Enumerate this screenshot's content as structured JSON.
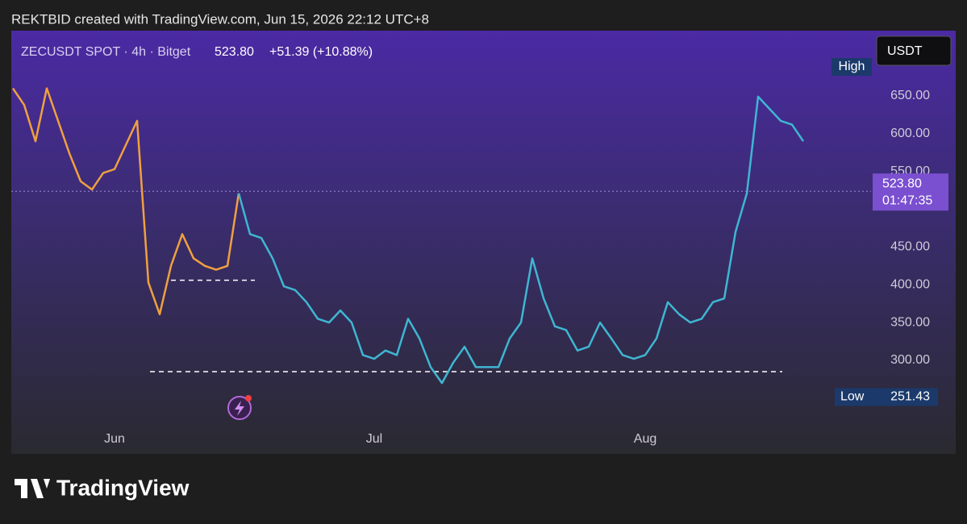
{
  "header": {
    "attribution": "REKTBID created with TradingView.com, Jun 15, 2026 22:12 UTC+8"
  },
  "chart_data": {
    "type": "line",
    "title": "ZECUSDT SPOT · 4h · Bitget",
    "change": "+51.39 (+10.88%)",
    "currency": "USDT",
    "last_price": {
      "value": 523.8,
      "label": "523.80"
    },
    "countdown": "01:47:35",
    "high_label": "High",
    "low": {
      "label": "Low",
      "value": 251.43
    },
    "hlines": [
      406,
      285
    ],
    "categories": [
      null,
      null,
      null,
      null,
      null,
      null,
      null,
      null,
      null,
      "Jun",
      null,
      null,
      null,
      null,
      null,
      null,
      null,
      null,
      null,
      null,
      null,
      null,
      null,
      null,
      null,
      null,
      null,
      null,
      null,
      null,
      null,
      null,
      "Jul",
      null,
      null,
      null,
      null,
      null,
      null,
      null,
      null,
      null,
      null,
      null,
      null,
      null,
      null,
      null,
      null,
      null,
      null,
      null,
      null,
      null,
      null,
      null,
      "Aug",
      null,
      null,
      null,
      null,
      null,
      null,
      null,
      null,
      null,
      null,
      null,
      null,
      null,
      null
    ],
    "series": [
      {
        "color": "#f0a040",
        "values": [
          660,
          638,
          590,
          660,
          617,
          574,
          537,
          526,
          548,
          553,
          585,
          617,
          403,
          361,
          425,
          467,
          435,
          425,
          420,
          425,
          521,
          null,
          null,
          null,
          null,
          null,
          null,
          null,
          null,
          null,
          null,
          null,
          null,
          null,
          null,
          null,
          null,
          null,
          null,
          null,
          null,
          null,
          null,
          null,
          null,
          null,
          null,
          null,
          null,
          null,
          null,
          null,
          null,
          null,
          null,
          null,
          null,
          null,
          null,
          null,
          null,
          null,
          null,
          null,
          null,
          null,
          null,
          null,
          null,
          null,
          null
        ]
      },
      {
        "color": "#3fb6d2",
        "values": [
          null,
          null,
          null,
          null,
          null,
          null,
          null,
          null,
          null,
          null,
          null,
          null,
          null,
          null,
          null,
          null,
          null,
          null,
          null,
          null,
          521,
          467,
          462,
          435,
          398,
          393,
          377,
          355,
          350,
          366,
          350,
          307,
          302,
          313,
          307,
          355,
          329,
          291,
          270,
          297,
          318,
          291,
          291,
          291,
          329,
          350,
          435,
          382,
          345,
          340,
          313,
          318,
          350,
          329,
          307,
          302,
          307,
          329,
          377,
          361,
          350,
          355,
          377,
          382,
          470,
          521,
          649,
          633,
          617,
          612,
          590
        ]
      }
    ],
    "ylim": [
      176.2,
      736.4
    ],
    "yticks": [
      {
        "value": 300,
        "label": "300.00"
      },
      {
        "value": 350,
        "label": "350.00"
      },
      {
        "value": 400,
        "label": "400.00"
      },
      {
        "value": 450,
        "label": "450.00"
      },
      {
        "value": 550,
        "label": "550.00"
      },
      {
        "value": 600,
        "label": "600.00"
      },
      {
        "value": 650,
        "label": "650.00"
      }
    ]
  },
  "footer": {
    "brand": "TradingView"
  }
}
